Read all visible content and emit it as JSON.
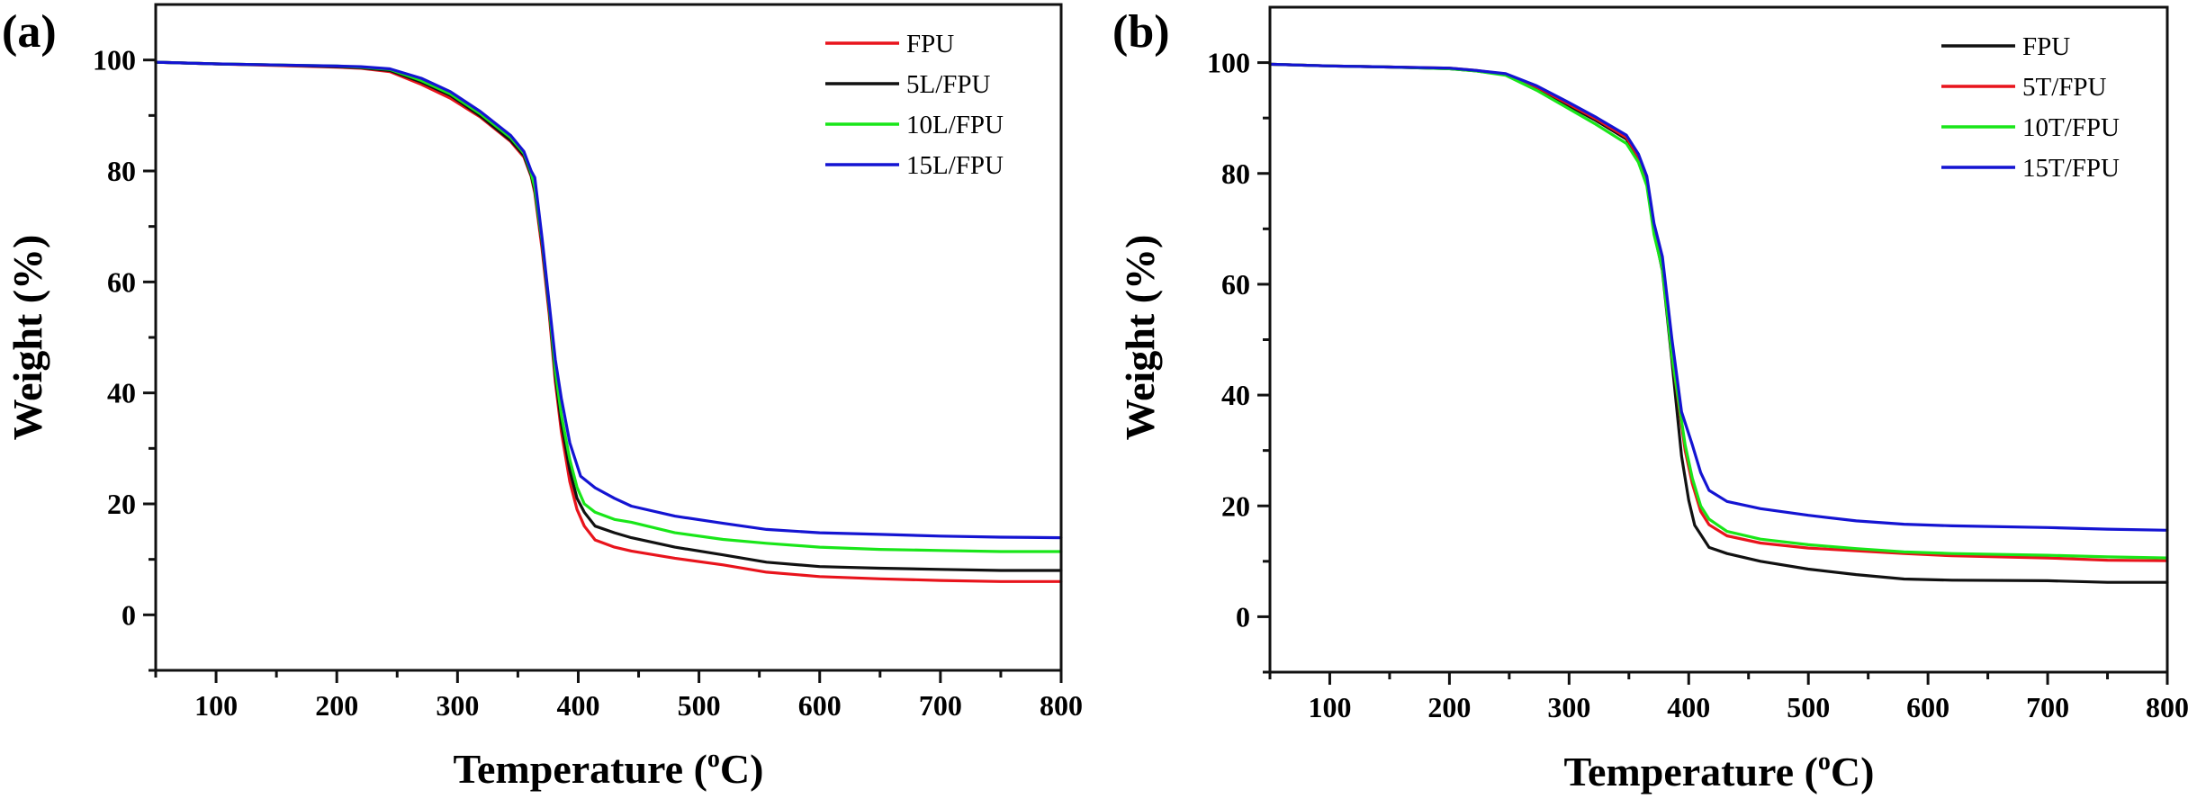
{
  "figure": {
    "panels_count": 2
  },
  "chart_data": [
    {
      "type": "line",
      "panel_label": "(a)",
      "title": "",
      "xlabel": "Temperature (°C)",
      "xlabel_main": "Temperature (",
      "xlabel_sup": "o",
      "xlabel_end": "C)",
      "ylabel": "Weight (%)",
      "xlim": [
        50,
        800
      ],
      "ylim": [
        -10,
        110
      ],
      "xticks": [
        100,
        200,
        300,
        400,
        500,
        600,
        700,
        800
      ],
      "xminor": [
        50,
        150,
        250,
        350,
        450,
        550,
        650,
        750
      ],
      "yticks": [
        0,
        20,
        40,
        60,
        80,
        100
      ],
      "yminor": [
        -10,
        10,
        30,
        50,
        70,
        90
      ],
      "grid": false,
      "legend_position": "top-right",
      "series": [
        {
          "name": "FPU",
          "color": "#e8141c",
          "x": [
            50,
            100,
            150,
            200,
            220,
            244,
            270,
            294,
            319,
            344,
            355,
            361,
            364,
            370,
            376,
            381,
            386,
            393,
            399,
            405,
            414,
            430,
            444,
            480,
            520,
            556,
            600,
            650,
            700,
            750,
            800
          ],
          "y": [
            99.6,
            99.3,
            99.0,
            98.7,
            98.5,
            97.9,
            95.6,
            93.1,
            89.7,
            85.3,
            82.5,
            79.0,
            76.0,
            66.0,
            54.0,
            42.0,
            33.0,
            24.0,
            19.0,
            16.0,
            13.5,
            12.2,
            11.5,
            10.2,
            9.0,
            7.7,
            6.9,
            6.5,
            6.2,
            6.0,
            6.0
          ]
        },
        {
          "name": "5L/FPU",
          "color": "#111111",
          "x": [
            50,
            100,
            150,
            200,
            220,
            244,
            270,
            294,
            319,
            344,
            355,
            361,
            364,
            370,
            376,
            381,
            386,
            393,
            399,
            405,
            414,
            430,
            444,
            480,
            520,
            556,
            600,
            650,
            700,
            750,
            800
          ],
          "y": [
            99.6,
            99.3,
            99.1,
            98.8,
            98.6,
            98.1,
            96.0,
            93.6,
            89.9,
            85.5,
            82.8,
            79.2,
            76.5,
            67.0,
            55.0,
            43.0,
            34.5,
            26.0,
            21.0,
            18.5,
            16.0,
            14.8,
            13.9,
            12.2,
            10.8,
            9.5,
            8.7,
            8.4,
            8.2,
            8.0,
            8.0
          ]
        },
        {
          "name": "10L/FPU",
          "color": "#19e619",
          "x": [
            50,
            100,
            150,
            200,
            220,
            244,
            270,
            294,
            319,
            344,
            355,
            361,
            364,
            370,
            376,
            381,
            386,
            393,
            399,
            405,
            414,
            430,
            444,
            480,
            520,
            556,
            600,
            650,
            700,
            750,
            800
          ],
          "y": [
            99.6,
            99.3,
            99.1,
            98.9,
            98.7,
            98.3,
            96.3,
            93.9,
            90.3,
            86.0,
            83.2,
            79.6,
            77.0,
            67.5,
            55.5,
            44.0,
            36.0,
            28.0,
            23.0,
            20.0,
            18.5,
            17.2,
            16.7,
            14.8,
            13.6,
            12.9,
            12.2,
            11.8,
            11.6,
            11.4,
            11.4
          ]
        },
        {
          "name": "15L/FPU",
          "color": "#1414d2",
          "x": [
            50,
            100,
            150,
            200,
            220,
            244,
            270,
            294,
            319,
            344,
            355,
            361,
            364,
            370,
            376,
            381,
            386,
            393,
            402,
            414,
            430,
            444,
            480,
            520,
            556,
            600,
            650,
            700,
            750,
            800
          ],
          "y": [
            99.6,
            99.3,
            99.1,
            98.9,
            98.8,
            98.4,
            96.7,
            94.3,
            90.7,
            86.4,
            83.5,
            80.0,
            78.8,
            68.0,
            56.0,
            46.0,
            39.0,
            31.0,
            25.0,
            22.9,
            21.0,
            19.6,
            17.8,
            16.5,
            15.4,
            14.8,
            14.5,
            14.2,
            14.0,
            13.9
          ]
        }
      ]
    },
    {
      "type": "line",
      "panel_label": "(b)",
      "title": "",
      "xlabel": "Temperature (°C)",
      "xlabel_main": "Temperature (",
      "xlabel_sup": "o",
      "xlabel_end": "C)",
      "ylabel": "Weight (%)",
      "xlim": [
        50,
        800
      ],
      "ylim": [
        -10,
        110
      ],
      "xticks": [
        100,
        200,
        300,
        400,
        500,
        600,
        700,
        800
      ],
      "xminor": [
        50,
        150,
        250,
        350,
        450,
        550,
        650,
        750
      ],
      "yticks": [
        0,
        20,
        40,
        60,
        80,
        100
      ],
      "yminor": [
        -10,
        10,
        30,
        50,
        70,
        90
      ],
      "grid": false,
      "legend_position": "top-right",
      "series": [
        {
          "name": "FPU",
          "color": "#111111",
          "x": [
            50,
            100,
            150,
            200,
            222,
            247,
            273,
            298,
            322,
            348,
            358,
            365,
            371,
            378,
            386,
            394,
            400,
            405,
            417,
            432,
            460,
            500,
            540,
            580,
            620,
            700,
            750,
            800
          ],
          "y": [
            99.7,
            99.4,
            99.2,
            98.9,
            98.5,
            97.8,
            95.4,
            92.4,
            89.6,
            86.2,
            82.7,
            78.5,
            69.5,
            62.5,
            46.0,
            29.0,
            21.0,
            16.5,
            12.5,
            11.4,
            10.0,
            8.6,
            7.6,
            6.8,
            6.6,
            6.5,
            6.2,
            6.2
          ]
        },
        {
          "name": "5T/FPU",
          "color": "#e8141c",
          "x": [
            50,
            100,
            150,
            200,
            222,
            247,
            273,
            298,
            322,
            348,
            358,
            365,
            371,
            378,
            386,
            397,
            403,
            410,
            417,
            432,
            460,
            500,
            540,
            580,
            620,
            700,
            750,
            800
          ],
          "y": [
            99.7,
            99.4,
            99.2,
            99.0,
            98.6,
            97.9,
            95.6,
            92.7,
            89.9,
            86.5,
            83.0,
            79.0,
            70.0,
            63.5,
            47.0,
            30.0,
            24.0,
            19.0,
            16.6,
            14.6,
            13.3,
            12.4,
            11.9,
            11.4,
            11.0,
            10.6,
            10.2,
            10.1
          ]
        },
        {
          "name": "10T/FPU",
          "color": "#19e619",
          "x": [
            50,
            100,
            150,
            200,
            222,
            247,
            273,
            298,
            322,
            348,
            358,
            365,
            371,
            378,
            386,
            397,
            403,
            410,
            417,
            432,
            460,
            500,
            540,
            580,
            620,
            700,
            750,
            800
          ],
          "y": [
            99.7,
            99.4,
            99.2,
            98.9,
            98.5,
            97.7,
            95.0,
            91.9,
            88.9,
            85.4,
            82.0,
            77.8,
            69.0,
            62.8,
            47.0,
            31.0,
            25.0,
            20.0,
            17.6,
            15.4,
            14.0,
            13.0,
            12.3,
            11.7,
            11.4,
            11.1,
            10.8,
            10.6
          ]
        },
        {
          "name": "15T/FPU",
          "color": "#1414d2",
          "x": [
            50,
            100,
            150,
            200,
            222,
            247,
            273,
            298,
            322,
            348,
            358,
            365,
            371,
            378,
            386,
            394,
            403,
            410,
            417,
            432,
            460,
            500,
            540,
            580,
            620,
            700,
            750,
            800
          ],
          "y": [
            99.7,
            99.4,
            99.2,
            99.0,
            98.6,
            98.0,
            95.8,
            93.0,
            90.2,
            86.9,
            83.5,
            79.5,
            71.0,
            65.0,
            50.0,
            37.0,
            31.0,
            26.0,
            22.8,
            20.8,
            19.5,
            18.3,
            17.3,
            16.7,
            16.4,
            16.1,
            15.8,
            15.6
          ]
        }
      ]
    }
  ]
}
